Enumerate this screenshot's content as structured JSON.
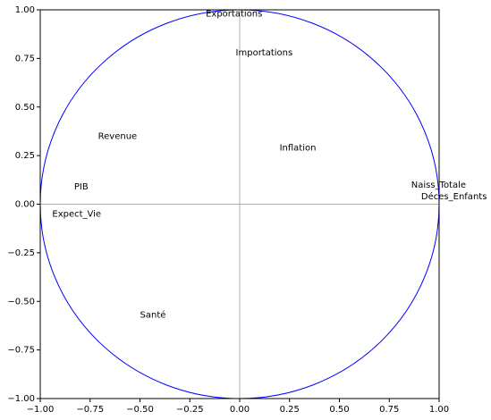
{
  "chart_data": {
    "type": "scatter",
    "title": "",
    "xlabel": "",
    "ylabel": "",
    "xlim": [
      -1.0,
      1.0
    ],
    "ylim": [
      -1.0,
      1.0
    ],
    "x_ticks": [
      "−1.00",
      "−0.75",
      "−0.50",
      "−0.25",
      "0.00",
      "0.25",
      "0.50",
      "0.75",
      "1.00"
    ],
    "y_ticks": [
      "1.00",
      "0.75",
      "0.50",
      "0.25",
      "0.00",
      "−0.25",
      "−0.50",
      "−0.75",
      "−1.00"
    ],
    "x_tick_values": [
      -1.0,
      -0.75,
      -0.5,
      -0.25,
      0.0,
      0.25,
      0.5,
      0.75,
      1.0
    ],
    "y_tick_values": [
      1.0,
      0.75,
      0.5,
      0.25,
      0.0,
      -0.25,
      -0.5,
      -0.75,
      -1.0
    ],
    "circle": {
      "center": [
        0,
        0
      ],
      "radius": 1.0,
      "color": "#0000ff"
    },
    "axis_lines_color": "#b0b0b0",
    "grid": false,
    "points": [
      {
        "label": "Exportations",
        "x": -0.17,
        "y": 0.98
      },
      {
        "label": "Importations",
        "x": -0.02,
        "y": 0.78
      },
      {
        "label": "Inflation",
        "x": 0.2,
        "y": 0.29
      },
      {
        "label": "Revenue",
        "x": -0.71,
        "y": 0.35
      },
      {
        "label": "PIB",
        "x": -0.83,
        "y": 0.09
      },
      {
        "label": "Expect_Vie",
        "x": -0.94,
        "y": -0.05
      },
      {
        "label": "Naiss_Totale",
        "x": 0.86,
        "y": 0.1
      },
      {
        "label": "Déces_Enfants",
        "x": 0.91,
        "y": 0.04
      },
      {
        "label": "Santé",
        "x": -0.5,
        "y": -0.57
      }
    ]
  }
}
